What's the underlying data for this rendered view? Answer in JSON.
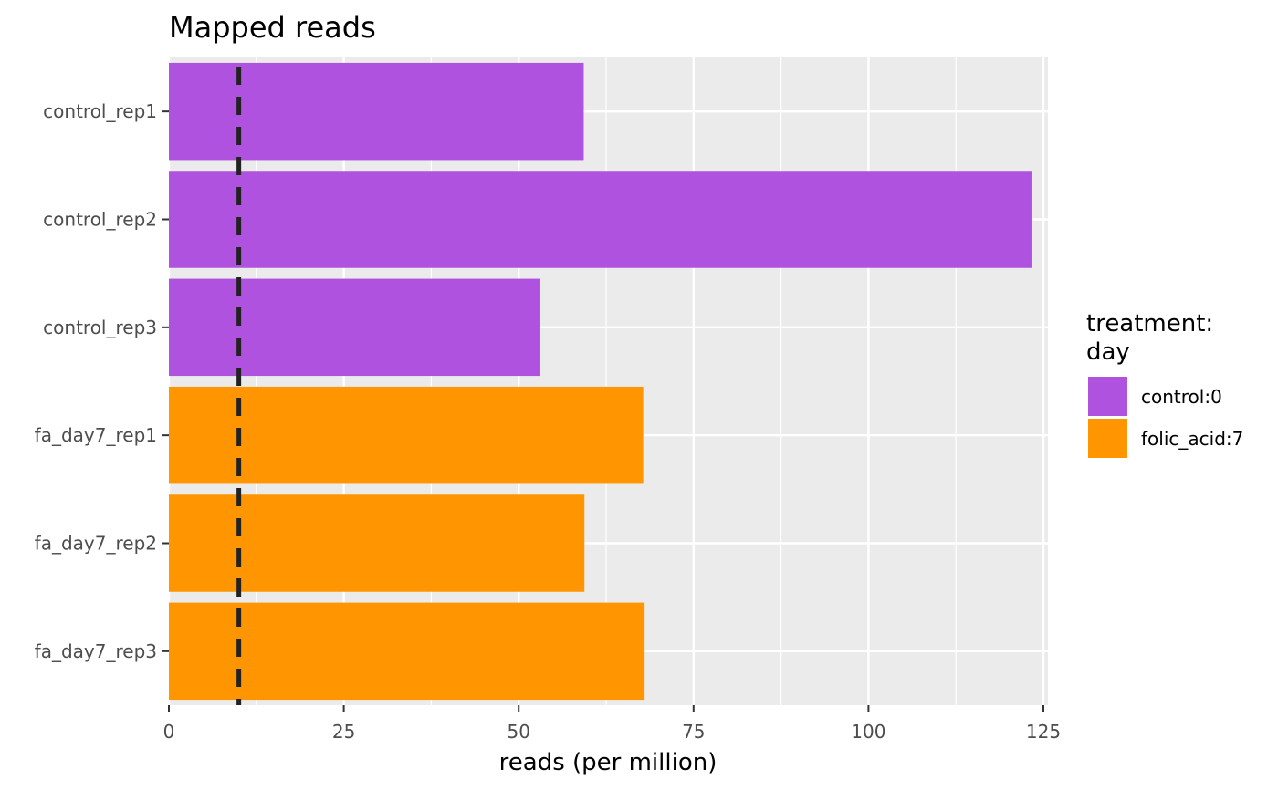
{
  "chart_data": {
    "type": "bar",
    "orientation": "horizontal",
    "title": "Mapped reads",
    "xlabel": "reads (per million)",
    "ylabel": "",
    "xlim": [
      0,
      126.5
    ],
    "x_ticks": [
      0,
      25,
      50,
      75,
      100,
      125
    ],
    "x_tick_labels": [
      "0",
      "25",
      "50",
      "75",
      "100",
      "125"
    ],
    "grid": true,
    "panel_background": "#ebebeb",
    "categories": [
      "control_rep1",
      "control_rep2",
      "control_rep3",
      "fa_day7_rep1",
      "fa_day7_rep2",
      "fa_day7_rep3"
    ],
    "values": [
      59.3,
      123.3,
      53.1,
      67.8,
      59.4,
      68.0
    ],
    "groups": [
      "control:0",
      "control:0",
      "control:0",
      "folic_acid:7",
      "folic_acid:7",
      "folic_acid:7"
    ],
    "reference_line": {
      "x": 10,
      "style": "dashed",
      "color": "#222222"
    },
    "legend": {
      "title_lines": [
        "treatment:",
        "day"
      ],
      "position": "right",
      "entries": [
        {
          "label": "control:0",
          "color": "#af52e0"
        },
        {
          "label": "folic_acid:7",
          "color": "#ff9500"
        }
      ]
    }
  }
}
